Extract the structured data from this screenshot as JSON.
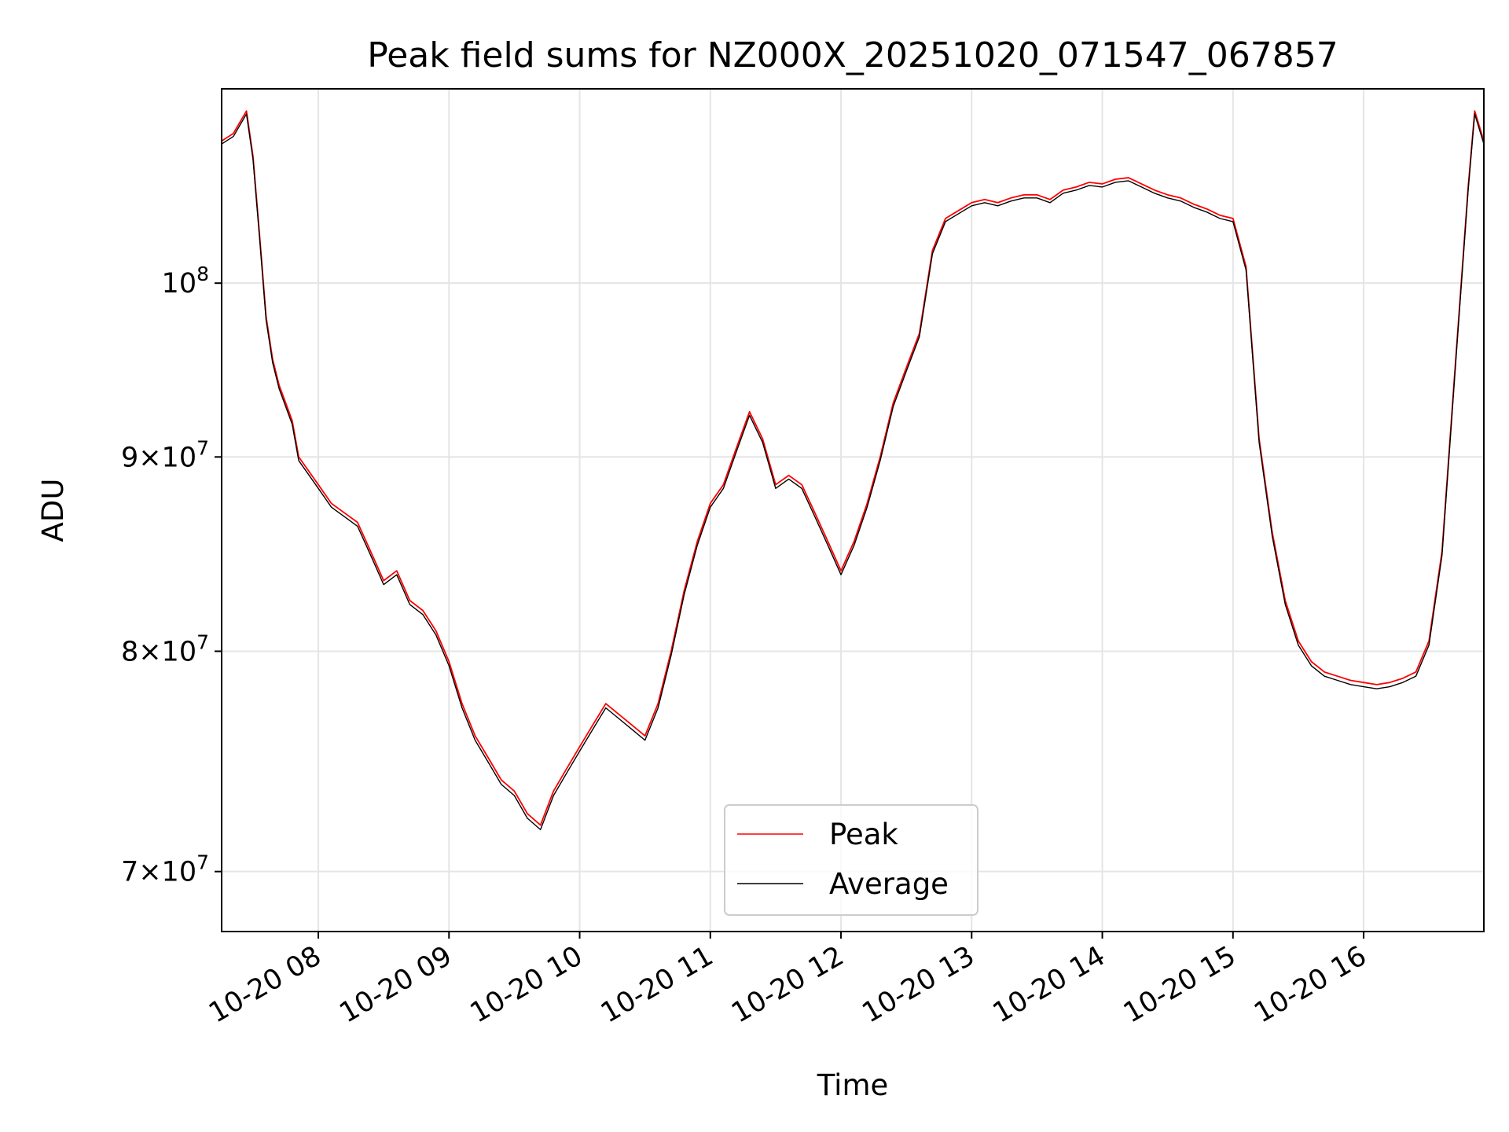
{
  "chart_data": {
    "type": "line",
    "title": "Peak field sums for NZ000X_20251020_071547_067857",
    "xlabel": "Time",
    "ylabel": "ADU",
    "y_scale": "log",
    "xlim_hours": [
      7.26,
      16.92
    ],
    "ylim": [
      67500000,
      112500000
    ],
    "grid": true,
    "legend_position": "lower-center",
    "x_ticks": [
      {
        "hour": 8,
        "label": "10-20 08"
      },
      {
        "hour": 9,
        "label": "10-20 09"
      },
      {
        "hour": 10,
        "label": "10-20 10"
      },
      {
        "hour": 11,
        "label": "10-20 11"
      },
      {
        "hour": 12,
        "label": "10-20 12"
      },
      {
        "hour": 13,
        "label": "10-20 13"
      },
      {
        "hour": 14,
        "label": "10-20 14"
      },
      {
        "hour": 15,
        "label": "10-20 15"
      },
      {
        "hour": 16,
        "label": "10-20 16"
      }
    ],
    "y_ticks": [
      {
        "value": 70000000,
        "mantissa": "7",
        "exponent": "7"
      },
      {
        "value": 80000000,
        "mantissa": "8",
        "exponent": "7"
      },
      {
        "value": 90000000,
        "mantissa": "9",
        "exponent": "7"
      },
      {
        "value": 100000000,
        "mantissa": "",
        "exponent": "8"
      }
    ],
    "series": [
      {
        "name": "Peak",
        "color": "#ff0000",
        "x_hours": [
          7.26,
          7.35,
          7.45,
          7.5,
          7.55,
          7.6,
          7.65,
          7.7,
          7.75,
          7.8,
          7.85,
          7.9,
          8.0,
          8.1,
          8.2,
          8.3,
          8.4,
          8.5,
          8.6,
          8.7,
          8.8,
          8.9,
          9.0,
          9.1,
          9.2,
          9.3,
          9.4,
          9.5,
          9.6,
          9.7,
          9.8,
          9.9,
          10.0,
          10.1,
          10.2,
          10.3,
          10.4,
          10.5,
          10.6,
          10.7,
          10.8,
          10.9,
          11.0,
          11.1,
          11.2,
          11.3,
          11.4,
          11.5,
          11.6,
          11.7,
          11.8,
          11.9,
          12.0,
          12.1,
          12.2,
          12.3,
          12.4,
          12.5,
          12.6,
          12.7,
          12.8,
          12.9,
          13.0,
          13.1,
          13.2,
          13.3,
          13.4,
          13.5,
          13.6,
          13.7,
          13.8,
          13.9,
          14.0,
          14.1,
          14.2,
          14.3,
          14.4,
          14.5,
          14.6,
          14.7,
          14.8,
          14.9,
          15.0,
          15.1,
          15.2,
          15.3,
          15.4,
          15.5,
          15.6,
          15.7,
          15.8,
          15.9,
          16.0,
          16.1,
          16.2,
          16.3,
          16.4,
          16.5,
          16.6,
          16.7,
          16.8,
          16.85,
          16.92
        ],
        "values": [
          109000000,
          109500000,
          111000000,
          108000000,
          103000000,
          98000000,
          95500000,
          94000000,
          93000000,
          92000000,
          90000000,
          89500000,
          88500000,
          87500000,
          87000000,
          86500000,
          85000000,
          83500000,
          84000000,
          82500000,
          82000000,
          81000000,
          79500000,
          77500000,
          76000000,
          75000000,
          74000000,
          73500000,
          72500000,
          72000000,
          73500000,
          74500000,
          75500000,
          76500000,
          77500000,
          77000000,
          76500000,
          76000000,
          77500000,
          80000000,
          83000000,
          85500000,
          87500000,
          88500000,
          90500000,
          92500000,
          91000000,
          88500000,
          89000000,
          88500000,
          87000000,
          85500000,
          84000000,
          85500000,
          87500000,
          90000000,
          93000000,
          95000000,
          97000000,
          102000000,
          104000000,
          104500000,
          105000000,
          105200000,
          105000000,
          105300000,
          105500000,
          105500000,
          105200000,
          105800000,
          106000000,
          106300000,
          106200000,
          106500000,
          106600000,
          106200000,
          105800000,
          105500000,
          105300000,
          104900000,
          104600000,
          104200000,
          104000000,
          101000000,
          91000000,
          86000000,
          82500000,
          80500000,
          79500000,
          79000000,
          78800000,
          78600000,
          78500000,
          78400000,
          78500000,
          78700000,
          79000000,
          80500000,
          85000000,
          95000000,
          106000000,
          111000000,
          109000000
        ]
      },
      {
        "name": "Average",
        "color": "#000000",
        "x_hours": [
          7.26,
          7.35,
          7.45,
          7.5,
          7.55,
          7.6,
          7.65,
          7.7,
          7.75,
          7.8,
          7.85,
          7.9,
          8.0,
          8.1,
          8.2,
          8.3,
          8.4,
          8.5,
          8.6,
          8.7,
          8.8,
          8.9,
          9.0,
          9.1,
          9.2,
          9.3,
          9.4,
          9.5,
          9.6,
          9.7,
          9.8,
          9.9,
          10.0,
          10.1,
          10.2,
          10.3,
          10.4,
          10.5,
          10.6,
          10.7,
          10.8,
          10.9,
          11.0,
          11.1,
          11.2,
          11.3,
          11.4,
          11.5,
          11.6,
          11.7,
          11.8,
          11.9,
          12.0,
          12.1,
          12.2,
          12.3,
          12.4,
          12.5,
          12.6,
          12.7,
          12.8,
          12.9,
          13.0,
          13.1,
          13.2,
          13.3,
          13.4,
          13.5,
          13.6,
          13.7,
          13.8,
          13.9,
          14.0,
          14.1,
          14.2,
          14.3,
          14.4,
          14.5,
          14.6,
          14.7,
          14.8,
          14.9,
          15.0,
          15.1,
          15.2,
          15.3,
          15.4,
          15.5,
          15.6,
          15.7,
          15.8,
          15.9,
          16.0,
          16.1,
          16.2,
          16.3,
          16.4,
          16.5,
          16.6,
          16.7,
          16.8,
          16.85,
          16.92
        ],
        "values": [
          108800000,
          109300000,
          110800000,
          107800000,
          102800000,
          97800000,
          95300000,
          93800000,
          92800000,
          91800000,
          89800000,
          89300000,
          88300000,
          87300000,
          86800000,
          86300000,
          84800000,
          83300000,
          83800000,
          82300000,
          81800000,
          80800000,
          79300000,
          77300000,
          75800000,
          74800000,
          73800000,
          73300000,
          72300000,
          71800000,
          73300000,
          74300000,
          75300000,
          76300000,
          77300000,
          76800000,
          76300000,
          75800000,
          77300000,
          79800000,
          82800000,
          85300000,
          87300000,
          88300000,
          90300000,
          92300000,
          90800000,
          88300000,
          88800000,
          88300000,
          86800000,
          85300000,
          83800000,
          85300000,
          87300000,
          89800000,
          92800000,
          94800000,
          96800000,
          101800000,
          103800000,
          104300000,
          104800000,
          105000000,
          104800000,
          105100000,
          105300000,
          105300000,
          105000000,
          105600000,
          105800000,
          106100000,
          106000000,
          106300000,
          106400000,
          106000000,
          105600000,
          105300000,
          105100000,
          104700000,
          104400000,
          104000000,
          103800000,
          100800000,
          90800000,
          85800000,
          82300000,
          80300000,
          79300000,
          78800000,
          78600000,
          78400000,
          78300000,
          78200000,
          78300000,
          78500000,
          78800000,
          80300000,
          84800000,
          94800000,
          105800000,
          110800000,
          108800000
        ]
      }
    ]
  }
}
